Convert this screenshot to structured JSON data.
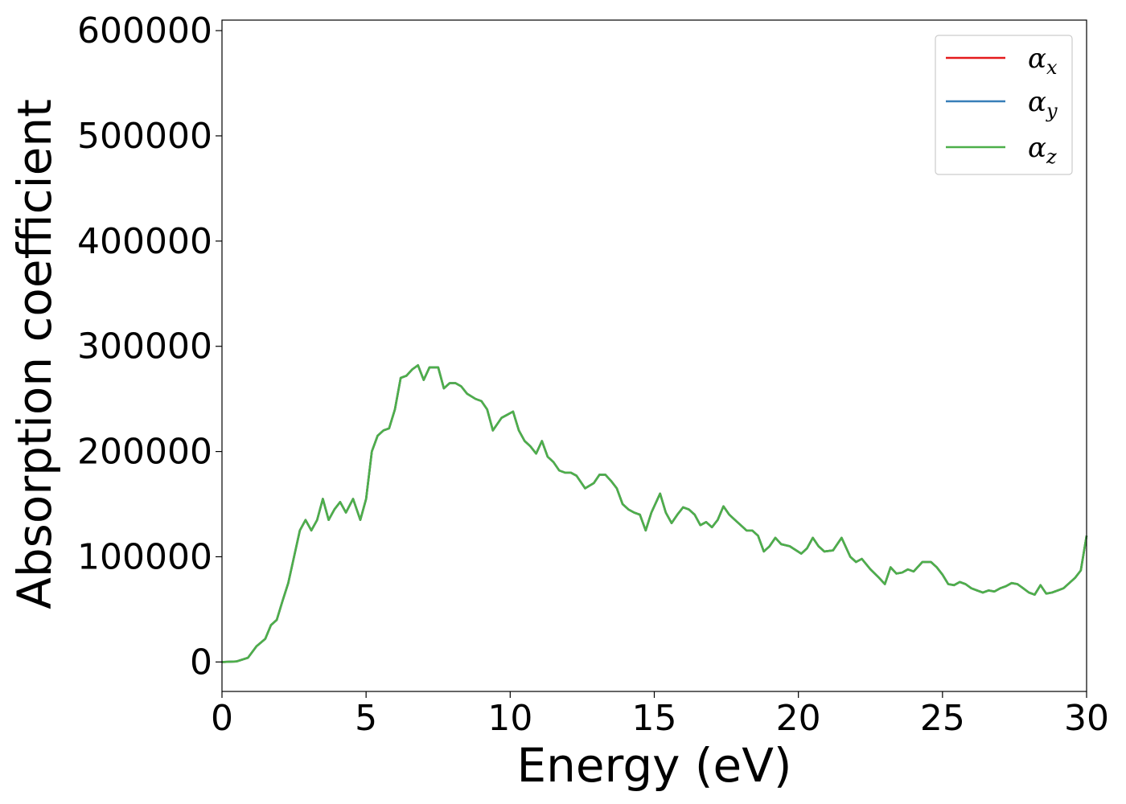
{
  "chart_data": {
    "type": "line",
    "xlabel": "Energy (eV)",
    "ylabel": "Absorption coefficient",
    "xlim": [
      0,
      30
    ],
    "ylim": [
      -28000,
      610000
    ],
    "xticks": [
      0,
      5,
      10,
      15,
      20,
      25,
      30
    ],
    "xtick_labels": [
      "0",
      "5",
      "10",
      "15",
      "20",
      "25",
      "30"
    ],
    "yticks": [
      0,
      100000,
      200000,
      300000,
      400000,
      500000,
      600000
    ],
    "ytick_labels": [
      "0",
      "100000",
      "200000",
      "300000",
      "400000",
      "500000",
      "600000"
    ],
    "grid": false,
    "legend_position": "top-right",
    "x": [
      0,
      0.5,
      0.9,
      1.2,
      1.5,
      1.7,
      1.9,
      2.1,
      2.3,
      2.5,
      2.7,
      2.9,
      3.1,
      3.3,
      3.5,
      3.7,
      3.9,
      4.1,
      4.3,
      4.55,
      4.8,
      5.0,
      5.2,
      5.4,
      5.6,
      5.8,
      6.0,
      6.2,
      6.4,
      6.6,
      6.8,
      7.0,
      7.2,
      7.5,
      7.7,
      7.9,
      8.1,
      8.3,
      8.5,
      8.8,
      9.0,
      9.2,
      9.4,
      9.7,
      9.9,
      10.1,
      10.3,
      10.5,
      10.7,
      10.9,
      11.1,
      11.3,
      11.5,
      11.7,
      11.9,
      12.1,
      12.3,
      12.6,
      12.9,
      13.1,
      13.3,
      13.5,
      13.7,
      13.9,
      14.1,
      14.3,
      14.5,
      14.7,
      14.9,
      15.2,
      15.4,
      15.6,
      15.8,
      16.0,
      16.2,
      16.4,
      16.6,
      16.8,
      17.0,
      17.2,
      17.4,
      17.6,
      17.8,
      18.0,
      18.2,
      18.4,
      18.6,
      18.8,
      19.0,
      19.2,
      19.4,
      19.7,
      20.1,
      20.3,
      20.5,
      20.7,
      20.9,
      21.2,
      21.5,
      21.8,
      22.0,
      22.2,
      22.5,
      22.8,
      23.0,
      23.2,
      23.4,
      23.6,
      23.8,
      24.0,
      24.3,
      24.6,
      24.8,
      25.0,
      25.2,
      25.4,
      25.6,
      25.8,
      26.0,
      26.2,
      26.4,
      26.6,
      26.8,
      27.0,
      27.2,
      27.4,
      27.6,
      27.8,
      28.0,
      28.2,
      28.4,
      28.6,
      28.8,
      29.0,
      29.2,
      29.4,
      29.6,
      29.8,
      30.0
    ],
    "series": [
      {
        "name": "α_x",
        "color": "#e41a1c",
        "values": [
          0,
          500,
          4000,
          15000,
          22000,
          35000,
          40000,
          58000,
          75000,
          100000,
          125000,
          135000,
          125000,
          135000,
          155000,
          135000,
          145000,
          152000,
          142000,
          155000,
          135000,
          155000,
          200000,
          215000,
          220000,
          222000,
          240000,
          270000,
          272000,
          278000,
          282000,
          268000,
          280000,
          280000,
          260000,
          265000,
          265000,
          262000,
          255000,
          250000,
          248000,
          240000,
          220000,
          232000,
          235000,
          238000,
          220000,
          210000,
          205000,
          198000,
          210000,
          195000,
          190000,
          182000,
          180000,
          180000,
          177000,
          165000,
          170000,
          178000,
          178000,
          172000,
          165000,
          150000,
          145000,
          142000,
          140000,
          125000,
          142000,
          160000,
          142000,
          132000,
          140000,
          147000,
          145000,
          140000,
          130000,
          133000,
          128000,
          135000,
          148000,
          140000,
          135000,
          130000,
          125000,
          125000,
          120000,
          105000,
          110000,
          118000,
          112000,
          110000,
          103000,
          108000,
          118000,
          110000,
          105000,
          106000,
          118000,
          100000,
          95000,
          98000,
          88000,
          80000,
          74000,
          90000,
          84000,
          85000,
          88000,
          86000,
          95000,
          95000,
          90000,
          83000,
          74000,
          73000,
          76000,
          74000,
          70000,
          68000,
          66000,
          68000,
          67000,
          70000,
          72000,
          75000,
          74000,
          70000,
          66000,
          64000,
          73000,
          65000,
          66000,
          68000,
          70000,
          75000,
          80000,
          87000,
          120000
        ]
      },
      {
        "name": "α_y",
        "color": "#377eb8",
        "values": [
          0,
          500,
          4000,
          15000,
          22000,
          35000,
          40000,
          58000,
          75000,
          100000,
          125000,
          135000,
          125000,
          135000,
          155000,
          135000,
          145000,
          152000,
          142000,
          155000,
          135000,
          155000,
          200000,
          215000,
          220000,
          222000,
          240000,
          270000,
          272000,
          278000,
          282000,
          268000,
          280000,
          280000,
          260000,
          265000,
          265000,
          262000,
          255000,
          250000,
          248000,
          240000,
          220000,
          232000,
          235000,
          238000,
          220000,
          210000,
          205000,
          198000,
          210000,
          195000,
          190000,
          182000,
          180000,
          180000,
          177000,
          165000,
          170000,
          178000,
          178000,
          172000,
          165000,
          150000,
          145000,
          142000,
          140000,
          125000,
          142000,
          160000,
          142000,
          132000,
          140000,
          147000,
          145000,
          140000,
          130000,
          133000,
          128000,
          135000,
          148000,
          140000,
          135000,
          130000,
          125000,
          125000,
          120000,
          105000,
          110000,
          118000,
          112000,
          110000,
          103000,
          108000,
          118000,
          110000,
          105000,
          106000,
          118000,
          100000,
          95000,
          98000,
          88000,
          80000,
          74000,
          90000,
          84000,
          85000,
          88000,
          86000,
          95000,
          95000,
          90000,
          83000,
          74000,
          73000,
          76000,
          74000,
          70000,
          68000,
          66000,
          68000,
          67000,
          70000,
          72000,
          75000,
          74000,
          70000,
          66000,
          64000,
          73000,
          65000,
          66000,
          68000,
          70000,
          75000,
          80000,
          87000,
          120000
        ]
      },
      {
        "name": "α_z",
        "color": "#4daf4a",
        "values": [
          0,
          500,
          4000,
          15000,
          22000,
          35000,
          40000,
          58000,
          75000,
          100000,
          125000,
          135000,
          125000,
          135000,
          155000,
          135000,
          145000,
          152000,
          142000,
          155000,
          135000,
          155000,
          200000,
          215000,
          220000,
          222000,
          240000,
          270000,
          272000,
          278000,
          282000,
          268000,
          280000,
          280000,
          260000,
          265000,
          265000,
          262000,
          255000,
          250000,
          248000,
          240000,
          220000,
          232000,
          235000,
          238000,
          220000,
          210000,
          205000,
          198000,
          210000,
          195000,
          190000,
          182000,
          180000,
          180000,
          177000,
          165000,
          170000,
          178000,
          178000,
          172000,
          165000,
          150000,
          145000,
          142000,
          140000,
          125000,
          142000,
          160000,
          142000,
          132000,
          140000,
          147000,
          145000,
          140000,
          130000,
          133000,
          128000,
          135000,
          148000,
          140000,
          135000,
          130000,
          125000,
          125000,
          120000,
          105000,
          110000,
          118000,
          112000,
          110000,
          103000,
          108000,
          118000,
          110000,
          105000,
          106000,
          118000,
          100000,
          95000,
          98000,
          88000,
          80000,
          74000,
          90000,
          84000,
          85000,
          88000,
          86000,
          95000,
          95000,
          90000,
          83000,
          74000,
          73000,
          76000,
          74000,
          70000,
          68000,
          66000,
          68000,
          67000,
          70000,
          72000,
          75000,
          74000,
          70000,
          66000,
          64000,
          73000,
          65000,
          66000,
          68000,
          70000,
          75000,
          80000,
          87000,
          120000
        ]
      }
    ],
    "legend_labels": [
      {
        "base": "α",
        "sub": "x"
      },
      {
        "base": "α",
        "sub": "y"
      },
      {
        "base": "α",
        "sub": "z"
      }
    ]
  }
}
